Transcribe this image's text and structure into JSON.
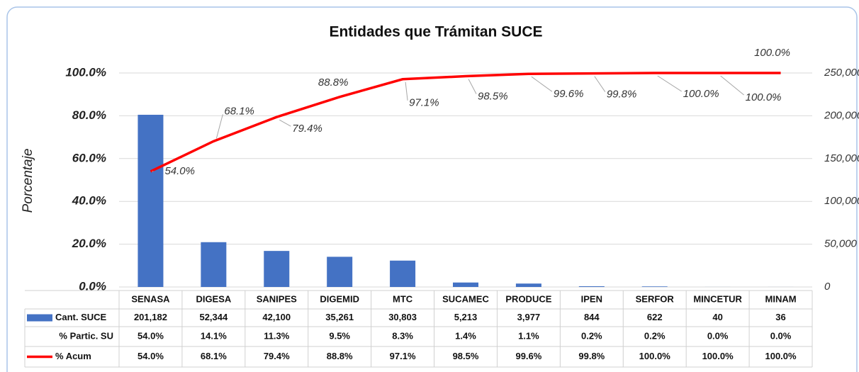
{
  "chart_data": {
    "type": "bar",
    "title": "Entidades que Trámitan SUCE",
    "ylabel": "Porcentaje",
    "categories": [
      "SENASA",
      "DIGESA",
      "SANIPES",
      "DIGEMID",
      "MTC",
      "SUCAMEC",
      "PRODUCE",
      "IPEN",
      "SERFOR",
      "MINCETUR",
      "MINAM"
    ],
    "series": [
      {
        "name": "Cant. SUCE",
        "type": "bar",
        "axis": "y2",
        "color": "#4472c4",
        "values": [
          201182,
          52344,
          42100,
          35261,
          30803,
          5213,
          3977,
          844,
          622,
          40,
          36
        ],
        "value_labels": [
          "201,182",
          "52,344",
          "42,100",
          "35,261",
          "30,803",
          "5,213",
          "3,977",
          "844",
          "622",
          "40",
          "36"
        ]
      },
      {
        "name": "% Partic. SU",
        "values": [
          54.0,
          14.1,
          11.3,
          9.5,
          8.3,
          1.4,
          1.1,
          0.2,
          0.2,
          0.0,
          0.0
        ],
        "value_labels": [
          "54.0%",
          "14.1%",
          "11.3%",
          "9.5%",
          "8.3%",
          "1.4%",
          "1.1%",
          "0.2%",
          "0.2%",
          "0.0%",
          "0.0%"
        ]
      },
      {
        "name": "% Acum",
        "type": "line",
        "color": "#ff0000",
        "values": [
          54.0,
          68.1,
          79.4,
          88.8,
          97.1,
          98.5,
          99.6,
          99.8,
          100.0,
          100.0,
          100.0
        ],
        "value_labels": [
          "54.0%",
          "68.1%",
          "79.4%",
          "88.8%",
          "97.1%",
          "98.5%",
          "99.6%",
          "99.8%",
          "100.0%",
          "100.0%",
          "100.0%"
        ]
      }
    ],
    "ylim": [
      0,
      100
    ],
    "yticks": [
      {
        "value": 0,
        "label": "0.0%"
      },
      {
        "value": 20,
        "label": "20.0%"
      },
      {
        "value": 40,
        "label": "40.0%"
      },
      {
        "value": 60,
        "label": "60.0%"
      },
      {
        "value": 80,
        "label": "80.0%"
      },
      {
        "value": 100,
        "label": "100.0%"
      }
    ],
    "y2lim": [
      0,
      250000
    ],
    "y2ticks": [
      0,
      {
        "value": 50000,
        "label": "50,000"
      },
      {
        "value": 100000,
        "label": "100,000"
      },
      {
        "value": 150000,
        "label": "150,000"
      },
      {
        "value": 200000,
        "label": "200,000"
      },
      {
        "value": 250000,
        "label": "250,000"
      }
    ],
    "grid": true
  }
}
